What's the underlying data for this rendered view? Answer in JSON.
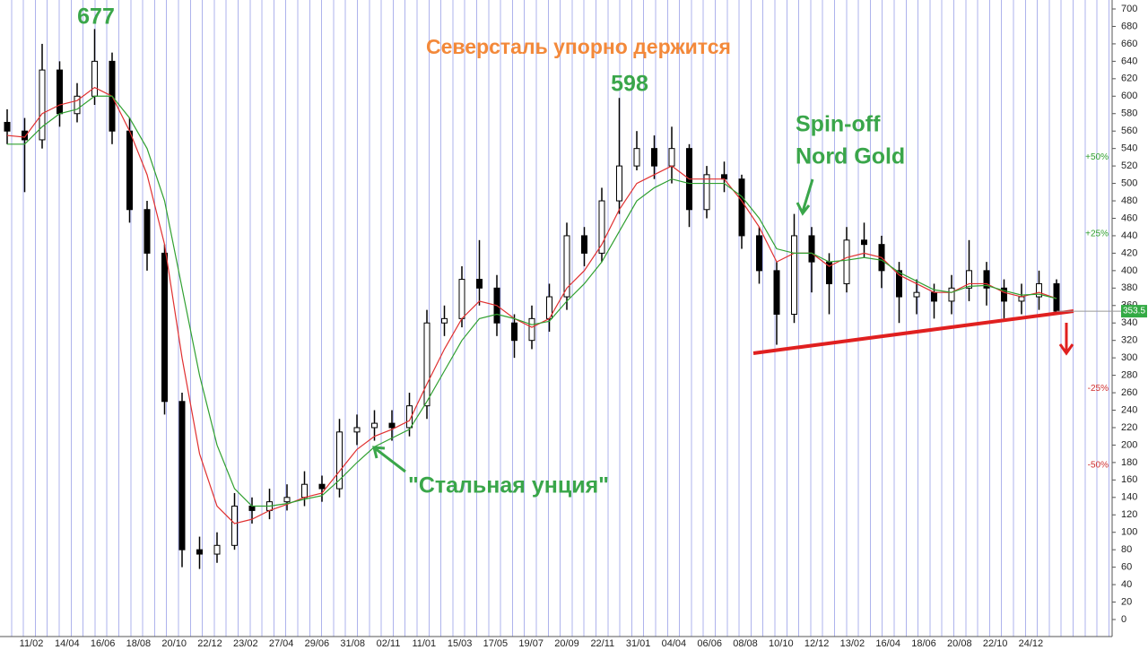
{
  "chart_data": {
    "type": "candlestick",
    "title": "Северсталь упорно держится",
    "annotations": [
      "Spin-off",
      "Nord Gold",
      "\"Стальная унция\""
    ],
    "x_tick_labels": [
      "11/02",
      "14/04",
      "16/06",
      "18/08",
      "20/10",
      "22/12",
      "23/02",
      "27/04",
      "29/06",
      "31/08",
      "02/11",
      "11/01",
      "15/03",
      "17/05",
      "19/07",
      "20/09",
      "22/11",
      "31/01",
      "04/04",
      "06/06",
      "08/08",
      "10/10",
      "12/12",
      "13/02",
      "16/04",
      "18/06",
      "20/08",
      "22/10",
      "24/12"
    ],
    "open": [
      570,
      560,
      550,
      630,
      580,
      600,
      640,
      560,
      470,
      420,
      250,
      80,
      75,
      85,
      130,
      125,
      135,
      140,
      155,
      150,
      215,
      220,
      225,
      220,
      245,
      340,
      345,
      390,
      380,
      340,
      320,
      345,
      370,
      440,
      420,
      480,
      520,
      540,
      520,
      540,
      470,
      510,
      505,
      440,
      400,
      350,
      440,
      410,
      385,
      435,
      430,
      400,
      370,
      375,
      365,
      380,
      400,
      380,
      365,
      370,
      385
    ],
    "high": [
      585,
      575,
      660,
      640,
      615,
      677,
      650,
      575,
      480,
      430,
      260,
      95,
      100,
      145,
      140,
      150,
      155,
      170,
      165,
      230,
      235,
      240,
      240,
      260,
      355,
      360,
      405,
      435,
      395,
      350,
      360,
      385,
      455,
      450,
      495,
      598,
      560,
      555,
      565,
      545,
      520,
      525,
      510,
      450,
      410,
      465,
      450,
      420,
      450,
      455,
      440,
      410,
      390,
      385,
      395,
      435,
      410,
      390,
      385,
      400,
      390
    ],
    "low": [
      545,
      490,
      540,
      565,
      570,
      590,
      545,
      455,
      400,
      235,
      60,
      58,
      65,
      80,
      110,
      115,
      125,
      130,
      135,
      140,
      200,
      205,
      205,
      210,
      230,
      325,
      335,
      360,
      325,
      300,
      310,
      330,
      355,
      405,
      410,
      465,
      515,
      505,
      500,
      450,
      460,
      490,
      425,
      385,
      315,
      340,
      375,
      350,
      375,
      415,
      380,
      340,
      350,
      345,
      350,
      365,
      360,
      345,
      350,
      355,
      350
    ],
    "close": [
      560,
      550,
      630,
      580,
      600,
      640,
      560,
      470,
      420,
      250,
      80,
      75,
      85,
      130,
      125,
      135,
      140,
      155,
      150,
      215,
      220,
      225,
      220,
      245,
      340,
      345,
      390,
      380,
      340,
      320,
      345,
      370,
      440,
      420,
      480,
      520,
      540,
      520,
      540,
      470,
      510,
      505,
      440,
      400,
      350,
      440,
      410,
      385,
      435,
      430,
      400,
      370,
      375,
      365,
      380,
      400,
      380,
      365,
      370,
      385,
      353.5
    ],
    "up_color": "#ffffff",
    "down_color": "#000000",
    "ma_lines": [
      {
        "color": "#e03030",
        "values": [
          555,
          553,
          580,
          590,
          595,
          610,
          600,
          560,
          510,
          430,
          300,
          190,
          130,
          110,
          115,
          125,
          132,
          140,
          145,
          170,
          195,
          210,
          218,
          228,
          270,
          310,
          345,
          365,
          360,
          345,
          335,
          345,
          380,
          400,
          430,
          470,
          500,
          510,
          520,
          505,
          505,
          505,
          480,
          450,
          410,
          420,
          420,
          405,
          415,
          420,
          415,
          395,
          385,
          375,
          375,
          385,
          385,
          375,
          370,
          375,
          368
        ]
      },
      {
        "color": "#30a030",
        "values": [
          545,
          545,
          565,
          580,
          585,
          600,
          600,
          575,
          540,
          480,
          380,
          280,
          200,
          150,
          130,
          130,
          133,
          138,
          142,
          160,
          180,
          198,
          208,
          218,
          250,
          285,
          320,
          345,
          350,
          345,
          338,
          342,
          365,
          385,
          410,
          445,
          480,
          495,
          505,
          500,
          500,
          500,
          485,
          460,
          425,
          420,
          420,
          410,
          412,
          415,
          412,
          398,
          388,
          378,
          375,
          382,
          383,
          377,
          372,
          373,
          368
        ]
      }
    ],
    "percent_levels": [
      {
        "value": 530,
        "label": "+50%",
        "color": "#30a030"
      },
      {
        "value": 442,
        "label": "+25%",
        "color": "#30a030"
      },
      {
        "value": 265,
        "label": "-25%",
        "color": "#d03030"
      },
      {
        "value": 177,
        "label": "-50%",
        "color": "#d03030"
      }
    ],
    "ylim": [
      0,
      700
    ],
    "yticks": [
      0,
      20,
      40,
      60,
      80,
      100,
      120,
      140,
      160,
      180,
      200,
      220,
      240,
      260,
      280,
      300,
      320,
      340,
      360,
      380,
      400,
      420,
      440,
      460,
      480,
      500,
      520,
      540,
      560,
      580,
      600,
      620,
      640,
      660,
      680,
      700
    ]
  }
}
